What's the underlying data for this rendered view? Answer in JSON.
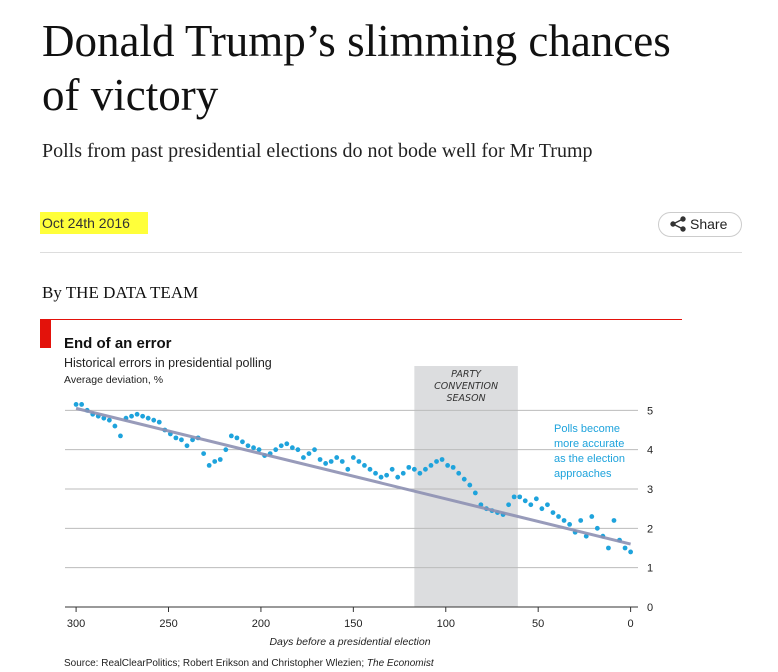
{
  "article": {
    "title_lines": [
      "Donald Trump’s slimming chances",
      "of victory"
    ],
    "subtitle": "Polls from past presidential elections do not bode well for Mr Trump",
    "date": "Oct 24th 2016",
    "share": "Share",
    "byline": "By THE DATA TEAM",
    "source": "Source: RealClearPolitics; Robert Erikson and Christopher Wlezien; ",
    "source_italic": "The Economist"
  },
  "chart_data": {
    "type": "scatter",
    "title": "End of an error",
    "subtitle": "Historical errors in presidential polling",
    "y_label": "Average deviation, %",
    "x_label": "Days before a presidential election",
    "band_label": [
      "PARTY",
      "CONVENTION",
      "SEASON"
    ],
    "band": [
      117,
      61
    ],
    "annotation": [
      "Polls become",
      "more accurate",
      "as the election",
      "approaches"
    ],
    "color": "#1ea3dc",
    "xlim": [
      306,
      -4
    ],
    "ylim": [
      0,
      6
    ],
    "xticks": [
      300,
      250,
      200,
      150,
      100,
      50,
      0
    ],
    "yticks": [
      0,
      1,
      2,
      3,
      4,
      5
    ],
    "grid": true,
    "x": [
      300,
      297,
      294,
      291,
      288,
      285,
      282,
      279,
      276,
      273,
      270,
      267,
      264,
      261,
      258,
      255,
      252,
      249,
      246,
      243,
      240,
      237,
      234,
      231,
      228,
      225,
      222,
      219,
      216,
      213,
      210,
      207,
      204,
      201,
      198,
      195,
      192,
      189,
      186,
      183,
      180,
      177,
      174,
      171,
      168,
      165,
      162,
      159,
      156,
      153,
      150,
      147,
      144,
      141,
      138,
      135,
      132,
      129,
      126,
      123,
      120,
      117,
      114,
      111,
      108,
      105,
      102,
      99,
      96,
      93,
      90,
      87,
      84,
      81,
      78,
      75,
      72,
      69,
      66,
      63,
      60,
      57,
      54,
      51,
      48,
      45,
      42,
      39,
      36,
      33,
      30,
      27,
      24,
      21,
      18,
      15,
      12,
      9,
      6,
      3,
      0
    ],
    "values": [
      5.15,
      5.15,
      5.0,
      4.9,
      4.85,
      4.8,
      4.75,
      4.6,
      4.35,
      4.8,
      4.85,
      4.9,
      4.85,
      4.8,
      4.75,
      4.7,
      4.5,
      4.4,
      4.3,
      4.25,
      4.1,
      4.25,
      4.3,
      3.9,
      3.6,
      3.7,
      3.75,
      4.0,
      4.35,
      4.3,
      4.2,
      4.1,
      4.05,
      4.0,
      3.85,
      3.9,
      4.0,
      4.1,
      4.15,
      4.05,
      4.0,
      3.8,
      3.9,
      4.0,
      3.75,
      3.65,
      3.7,
      3.8,
      3.7,
      3.5,
      3.8,
      3.7,
      3.6,
      3.5,
      3.4,
      3.3,
      3.35,
      3.5,
      3.3,
      3.4,
      3.55,
      3.5,
      3.4,
      3.5,
      3.6,
      3.7,
      3.75,
      3.6,
      3.55,
      3.4,
      3.25,
      3.1,
      2.9,
      2.6,
      2.5,
      2.45,
      2.4,
      2.35,
      2.6,
      2.8,
      2.8,
      2.7,
      2.6,
      2.75,
      2.5,
      2.6,
      2.4,
      2.3,
      2.2,
      2.1,
      1.9,
      2.2,
      1.8,
      2.3,
      2.0,
      1.8,
      1.5,
      2.2,
      1.7,
      1.5,
      1.4
    ],
    "trend": {
      "color": "#8d90b3",
      "x": [
        300,
        0
      ],
      "values": [
        5.05,
        1.6
      ]
    }
  }
}
